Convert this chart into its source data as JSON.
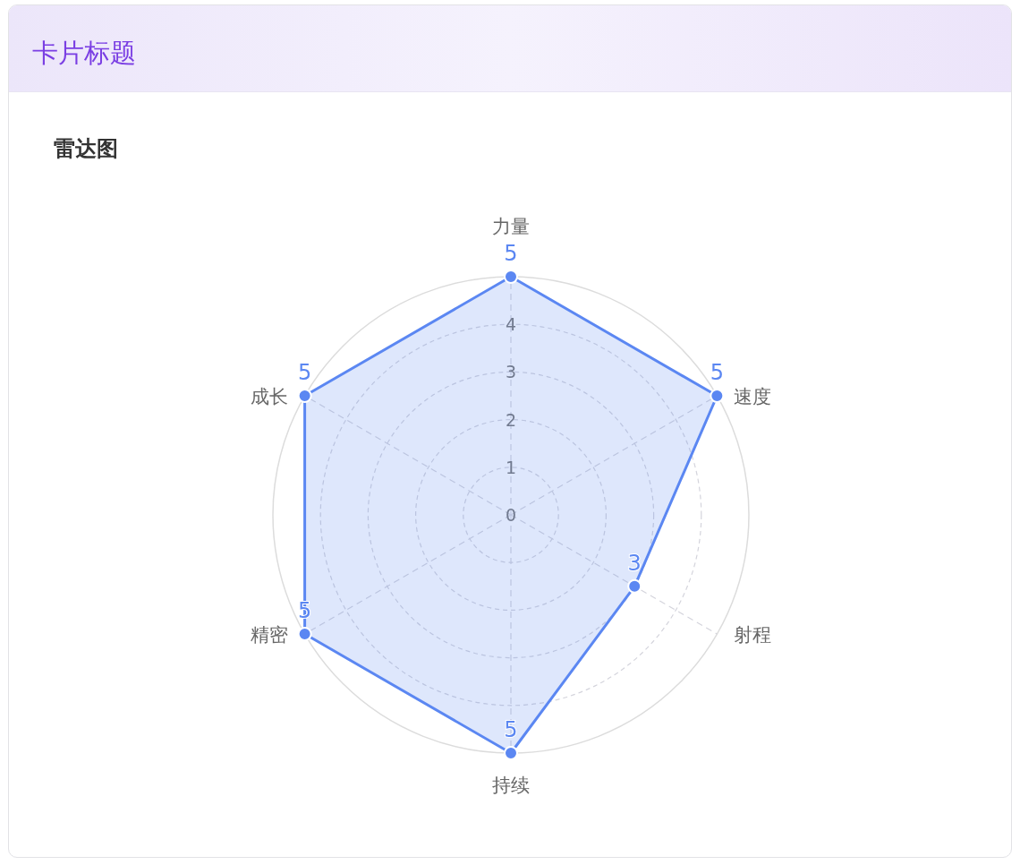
{
  "chart_data": {
    "type": "radar",
    "title": "卡片标题",
    "subtitle": "雷达图",
    "categories": [
      "力量",
      "速度",
      "射程",
      "持续",
      "精密",
      "成长"
    ],
    "series": [
      {
        "color": "#5b87f2",
        "values": [
          5,
          5,
          3,
          5,
          5,
          5
        ]
      }
    ],
    "ylim": [
      0,
      5
    ],
    "yticks": [
      0,
      1,
      2,
      3,
      4
    ],
    "grid": true,
    "marker": "circle",
    "data_labels": true
  }
}
